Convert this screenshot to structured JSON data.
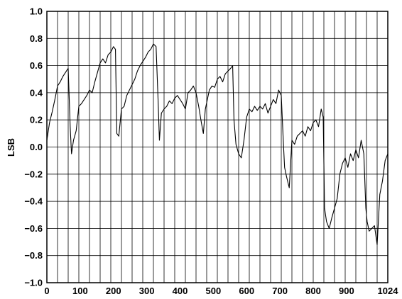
{
  "chart_data": {
    "type": "line",
    "title": "",
    "xlabel": "",
    "ylabel": "LSB",
    "xlim": [
      0,
      1024
    ],
    "ylim": [
      -1.0,
      1.0
    ],
    "grid": true,
    "legend": "none",
    "x_ticks": [
      0,
      100,
      200,
      300,
      400,
      500,
      600,
      700,
      800,
      900,
      1024
    ],
    "x_tick_labels": [
      "0",
      "100",
      "200",
      "300",
      "400",
      "500",
      "600",
      "700",
      "800",
      "900",
      "1024"
    ],
    "y_ticks": [
      -1.0,
      -0.8,
      -0.6,
      -0.4,
      -0.2,
      0.0,
      0.2,
      0.4,
      0.6,
      0.8,
      1.0
    ],
    "y_tick_labels": [
      "−1.0",
      "−0.8",
      "−0.6",
      "−0.4",
      "−0.2",
      "0.0",
      "0.2",
      "0.4",
      "0.6",
      "0.8",
      "1.0"
    ],
    "grid_x_lines": [
      0,
      32,
      64,
      96,
      128,
      160,
      192,
      224,
      256,
      288,
      320,
      352,
      384,
      416,
      448,
      480,
      512,
      544,
      576,
      608,
      640,
      672,
      704,
      736,
      768,
      800,
      832,
      864,
      896,
      928,
      960,
      992,
      1024
    ],
    "series": [
      {
        "name": "",
        "color": "#000000",
        "x": [
          0,
          8,
          16,
          24,
          32,
          40,
          48,
          56,
          64,
          70,
          74,
          80,
          88,
          96,
          104,
          112,
          120,
          128,
          136,
          144,
          152,
          160,
          168,
          176,
          184,
          192,
          200,
          206,
          210,
          216,
          224,
          232,
          240,
          248,
          256,
          264,
          272,
          280,
          288,
          296,
          304,
          312,
          320,
          328,
          334,
          338,
          344,
          352,
          360,
          368,
          376,
          384,
          392,
          400,
          408,
          416,
          424,
          432,
          440,
          448,
          456,
          464,
          470,
          476,
          482,
          488,
          496,
          504,
          512,
          520,
          528,
          536,
          544,
          552,
          558,
          562,
          568,
          576,
          584,
          592,
          600,
          608,
          616,
          624,
          632,
          640,
          648,
          656,
          664,
          672,
          680,
          688,
          696,
          704,
          710,
          714,
          720,
          728,
          736,
          744,
          752,
          760,
          768,
          776,
          784,
          792,
          800,
          808,
          816,
          824,
          830,
          834,
          840,
          848,
          856,
          864,
          872,
          880,
          888,
          896,
          904,
          912,
          920,
          928,
          936,
          944,
          952,
          958,
          962,
          968,
          976,
          984,
          992,
          1000,
          1008,
          1016,
          1024
        ],
        "y": [
          0.05,
          0.18,
          0.26,
          0.35,
          0.45,
          0.48,
          0.52,
          0.55,
          0.58,
          0.15,
          -0.05,
          0.05,
          0.12,
          0.3,
          0.32,
          0.35,
          0.38,
          0.42,
          0.4,
          0.48,
          0.55,
          0.62,
          0.65,
          0.62,
          0.68,
          0.7,
          0.74,
          0.72,
          0.1,
          0.08,
          0.28,
          0.3,
          0.38,
          0.42,
          0.46,
          0.5,
          0.56,
          0.6,
          0.63,
          0.66,
          0.7,
          0.72,
          0.76,
          0.74,
          0.35,
          0.05,
          0.25,
          0.28,
          0.3,
          0.34,
          0.32,
          0.36,
          0.38,
          0.35,
          0.32,
          0.28,
          0.4,
          0.42,
          0.45,
          0.4,
          0.3,
          0.18,
          0.1,
          0.28,
          0.35,
          0.42,
          0.45,
          0.44,
          0.5,
          0.52,
          0.48,
          0.54,
          0.56,
          0.58,
          0.6,
          0.2,
          0.02,
          -0.05,
          -0.08,
          0.05,
          0.22,
          0.28,
          0.26,
          0.3,
          0.27,
          0.3,
          0.28,
          0.32,
          0.25,
          0.3,
          0.35,
          0.32,
          0.42,
          0.38,
          0.05,
          -0.15,
          -0.22,
          -0.3,
          0.05,
          0.02,
          0.08,
          0.1,
          0.12,
          0.08,
          0.15,
          0.12,
          0.18,
          0.2,
          0.15,
          0.28,
          0.22,
          -0.45,
          -0.55,
          -0.6,
          -0.52,
          -0.45,
          -0.38,
          -0.2,
          -0.12,
          -0.08,
          -0.15,
          -0.05,
          -0.1,
          -0.02,
          -0.08,
          0.05,
          -0.05,
          -0.45,
          -0.55,
          -0.62,
          -0.6,
          -0.58,
          -0.72,
          -0.35,
          -0.25,
          -0.1,
          -0.05
        ]
      }
    ]
  }
}
